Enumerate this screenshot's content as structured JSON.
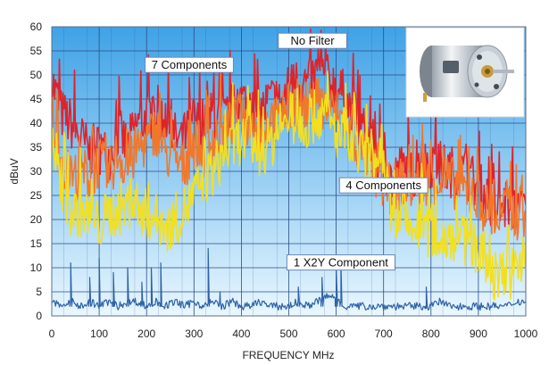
{
  "chart_data": {
    "type": "line",
    "title": "",
    "xlabel": "FREQUENCY MHz",
    "ylabel": "dBuV",
    "xlim": [
      0,
      1000
    ],
    "ylim": [
      0,
      60
    ],
    "xticks": [
      0,
      100,
      200,
      300,
      400,
      500,
      600,
      700,
      800,
      900,
      1000
    ],
    "yticks": [
      0,
      5,
      10,
      15,
      20,
      25,
      30,
      35,
      40,
      45,
      50,
      55,
      60
    ],
    "grid": true,
    "legend": "inline labels",
    "background_gradient": [
      "#3fa2e6",
      "#e9f7ff"
    ],
    "inset_image": "dc-motor-photo",
    "series": [
      {
        "name": "No Filter",
        "color": "#e0232a",
        "x": [
          0,
          20,
          40,
          60,
          80,
          100,
          120,
          140,
          160,
          180,
          200,
          220,
          240,
          260,
          280,
          300,
          320,
          340,
          360,
          380,
          400,
          420,
          440,
          460,
          480,
          500,
          520,
          540,
          560,
          580,
          600,
          620,
          640,
          660,
          680,
          700,
          720,
          740,
          760,
          780,
          800,
          820,
          840,
          860,
          880,
          900,
          920,
          940,
          960,
          980,
          1000
        ],
        "values": [
          49,
          42,
          40,
          37,
          34,
          35,
          33,
          38,
          35,
          40,
          41,
          43,
          40,
          37,
          36,
          41,
          38,
          42,
          40,
          43,
          45,
          43,
          42,
          45,
          44,
          47,
          49,
          48,
          50,
          49,
          48,
          45,
          41,
          38,
          35,
          31,
          28,
          31,
          29,
          31,
          32,
          31,
          30,
          30,
          29,
          27,
          24,
          22,
          23,
          22,
          23
        ],
        "label_line": 0.6
      },
      {
        "name": "7 Components",
        "color": "#f2772a",
        "x": [
          0,
          20,
          40,
          60,
          80,
          100,
          120,
          140,
          160,
          180,
          200,
          220,
          240,
          260,
          280,
          300,
          320,
          340,
          360,
          380,
          400,
          420,
          440,
          460,
          480,
          500,
          520,
          540,
          560,
          580,
          600,
          620,
          640,
          660,
          680,
          700,
          720,
          740,
          760,
          780,
          800,
          820,
          840,
          860,
          880,
          900,
          920,
          940,
          960,
          980,
          1000
        ],
        "values": [
          42,
          33,
          28,
          30,
          29,
          32,
          29,
          34,
          30,
          35,
          36,
          39,
          34,
          32,
          31,
          36,
          34,
          37,
          38,
          40,
          41,
          40,
          38,
          41,
          40,
          43,
          44,
          43,
          44,
          43,
          42,
          40,
          36,
          33,
          30,
          27,
          26,
          28,
          27,
          28,
          29,
          28,
          28,
          27,
          25,
          24,
          22,
          20,
          21,
          21,
          22
        ]
      },
      {
        "name": "4 Components",
        "color": "#f2e020",
        "x": [
          0,
          20,
          40,
          60,
          80,
          100,
          120,
          140,
          160,
          180,
          200,
          220,
          240,
          260,
          280,
          300,
          320,
          340,
          360,
          380,
          400,
          420,
          440,
          460,
          480,
          500,
          520,
          540,
          560,
          580,
          600,
          620,
          640,
          660,
          680,
          700,
          720,
          740,
          760,
          780,
          800,
          820,
          840,
          860,
          880,
          900,
          920,
          940,
          960,
          980,
          1000
        ],
        "values": [
          35,
          27,
          21,
          22,
          20,
          19,
          21,
          22,
          23,
          23,
          21,
          20,
          18,
          20,
          22,
          25,
          28,
          30,
          33,
          35,
          37,
          36,
          34,
          36,
          37,
          40,
          41,
          40,
          42,
          41,
          38,
          36,
          34,
          33,
          31,
          26,
          20,
          19,
          18,
          19,
          17,
          16,
          17,
          16,
          15,
          13,
          10,
          8,
          9,
          9,
          10
        ]
      },
      {
        "name": "1 X2Y Component",
        "color": "#2f63a8",
        "x": [
          0,
          20,
          40,
          60,
          80,
          100,
          120,
          140,
          160,
          180,
          200,
          220,
          240,
          260,
          280,
          300,
          320,
          340,
          360,
          380,
          400,
          420,
          440,
          460,
          480,
          500,
          520,
          540,
          560,
          580,
          600,
          620,
          640,
          660,
          680,
          700,
          720,
          740,
          760,
          780,
          800,
          820,
          840,
          860,
          880,
          900,
          920,
          940,
          960,
          980,
          1000
        ],
        "values": [
          3,
          2,
          3,
          2,
          3,
          2,
          3,
          2,
          3,
          3,
          2,
          3,
          2,
          3,
          2,
          3,
          2,
          3,
          2,
          3,
          2,
          2,
          3,
          2,
          2,
          2,
          3,
          2,
          3,
          4,
          4,
          2,
          2,
          2,
          2,
          2,
          2,
          2,
          2,
          2,
          2,
          3,
          2,
          2,
          2,
          2,
          2,
          2,
          2,
          3,
          3
        ],
        "spikes": [
          {
            "x": 40,
            "y": 11
          },
          {
            "x": 80,
            "y": 8
          },
          {
            "x": 100,
            "y": 12
          },
          {
            "x": 130,
            "y": 9
          },
          {
            "x": 160,
            "y": 10
          },
          {
            "x": 190,
            "y": 7
          },
          {
            "x": 210,
            "y": 10
          },
          {
            "x": 230,
            "y": 11
          },
          {
            "x": 330,
            "y": 14
          },
          {
            "x": 355,
            "y": 5
          },
          {
            "x": 520,
            "y": 6
          },
          {
            "x": 570,
            "y": 8
          },
          {
            "x": 600,
            "y": 10
          },
          {
            "x": 610,
            "y": 11
          },
          {
            "x": 790,
            "y": 6
          }
        ]
      }
    ],
    "annotations": [
      {
        "text": "No Filter",
        "x": 550,
        "y": 57
      },
      {
        "text": "7 Components",
        "x": 290,
        "y": 52
      },
      {
        "text": "4 Components",
        "x": 700,
        "y": 27
      },
      {
        "text": "1 X2Y Component",
        "x": 610,
        "y": 11
      }
    ]
  }
}
